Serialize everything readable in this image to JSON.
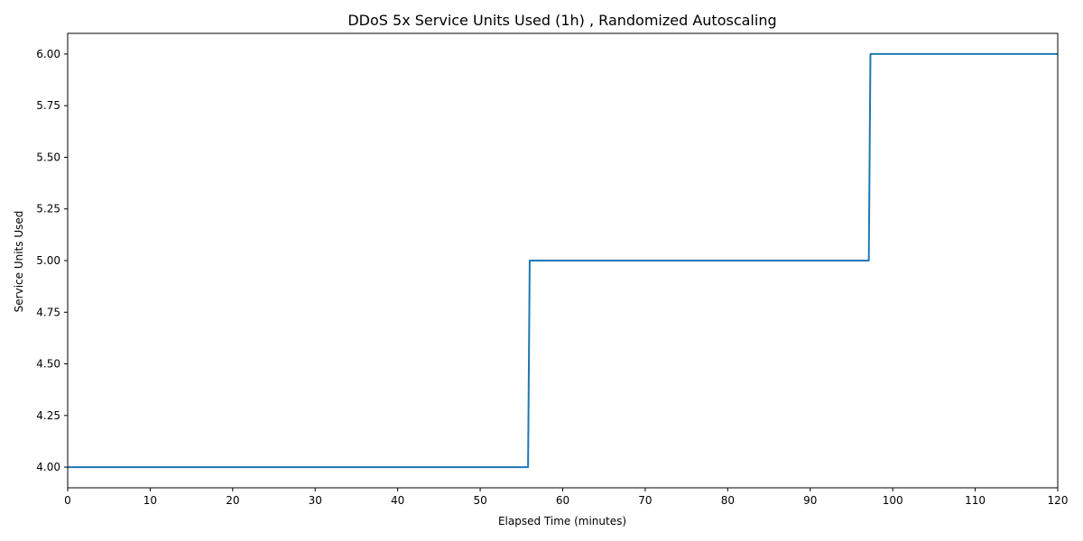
{
  "chart_data": {
    "type": "line",
    "title": "DDoS 5x Service Units Used (1h) , Randomized Autoscaling",
    "xlabel": "Elapsed Time (minutes)",
    "ylabel": "Service Units Used",
    "xlim": [
      0,
      120
    ],
    "ylim": [
      3.9,
      6.1
    ],
    "xticks": [
      0,
      10,
      20,
      30,
      40,
      50,
      60,
      70,
      80,
      90,
      100,
      110,
      120
    ],
    "yticks": [
      4.0,
      4.25,
      4.5,
      4.75,
      5.0,
      5.25,
      5.5,
      5.75,
      6.0
    ],
    "ytick_labels": [
      "4.00",
      "4.25",
      "4.50",
      "4.75",
      "5.00",
      "5.25",
      "5.50",
      "5.75",
      "6.00"
    ],
    "grid": false,
    "series": [
      {
        "color": "#1f77b4",
        "x": [
          0,
          55.8,
          56.0,
          97.1,
          97.3,
          120
        ],
        "y": [
          4,
          4,
          5,
          5,
          6,
          6
        ]
      }
    ]
  }
}
